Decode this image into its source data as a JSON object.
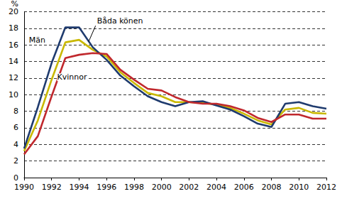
{
  "chart_data": {
    "type": "line",
    "y_label": "%",
    "x": [
      1990,
      1991,
      1992,
      1993,
      1994,
      1995,
      1996,
      1997,
      1998,
      1999,
      2000,
      2001,
      2002,
      2003,
      2004,
      2005,
      2006,
      2007,
      2008,
      2009,
      2010,
      2011,
      2012
    ],
    "series": [
      {
        "name": "Båda könen",
        "color": "#c9b800",
        "values": [
          3.2,
          6.9,
          11.8,
          16.3,
          16.6,
          15.4,
          14.6,
          12.7,
          11.4,
          10.2,
          9.8,
          9.1,
          9.1,
          9.0,
          8.8,
          8.4,
          7.7,
          6.9,
          6.4,
          8.2,
          8.4,
          7.8,
          7.7
        ]
      },
      {
        "name": "Män",
        "color": "#1f3b6e",
        "values": [
          3.5,
          8.5,
          13.8,
          18.1,
          18.1,
          15.7,
          14.2,
          12.3,
          11.0,
          9.8,
          9.1,
          8.6,
          9.1,
          9.2,
          8.7,
          8.2,
          7.4,
          6.5,
          6.1,
          8.9,
          9.1,
          8.6,
          8.3
        ]
      },
      {
        "name": "Kvinnor",
        "color": "#c0282d",
        "values": [
          2.8,
          5.0,
          9.8,
          14.4,
          14.8,
          15.0,
          14.9,
          13.0,
          11.8,
          10.7,
          10.5,
          9.7,
          9.1,
          8.9,
          8.9,
          8.6,
          8.1,
          7.2,
          6.7,
          7.6,
          7.6,
          7.1,
          7.1
        ]
      }
    ],
    "xlim": [
      1990,
      2012
    ],
    "xticks": [
      1990,
      1992,
      1994,
      1996,
      1998,
      2000,
      2002,
      2004,
      2006,
      2008,
      2010,
      2012
    ],
    "ylim": [
      0,
      20
    ],
    "yticks": [
      0,
      2,
      4,
      6,
      8,
      10,
      12,
      14,
      16,
      18,
      20
    ],
    "grid": true
  }
}
